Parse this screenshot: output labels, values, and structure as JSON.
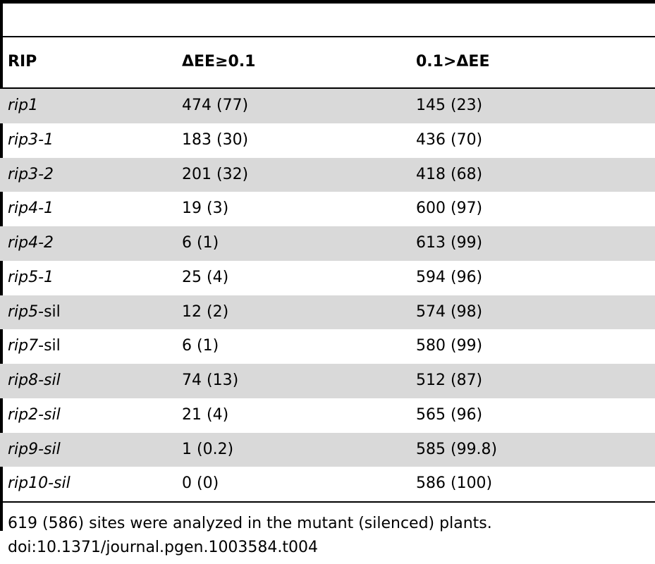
{
  "table": {
    "headers": [
      "RIP",
      "ΔEE≥0.1",
      "0.1>ΔEE"
    ],
    "rows": [
      {
        "rip": "rip1",
        "rip_suffix": "",
        "a": "474 (77)",
        "b": "145 (23)"
      },
      {
        "rip": "rip3-1",
        "rip_suffix": "",
        "a": "183 (30)",
        "b": "436 (70)"
      },
      {
        "rip": "rip3-2",
        "rip_suffix": "",
        "a": "201 (32)",
        "b": "418 (68)"
      },
      {
        "rip": "rip4-1",
        "rip_suffix": "",
        "a": "19 (3)",
        "b": "600 (97)"
      },
      {
        "rip": "rip4-2",
        "rip_suffix": "",
        "a": "6 (1)",
        "b": "613 (99)"
      },
      {
        "rip": "rip5-1",
        "rip_suffix": "",
        "a": "25 (4)",
        "b": "594 (96)"
      },
      {
        "rip": "rip5",
        "rip_suffix": "-sil",
        "a": "12 (2)",
        "b": "574 (98)"
      },
      {
        "rip": "rip7",
        "rip_suffix": "-sil",
        "a": "6 (1)",
        "b": "580 (99)"
      },
      {
        "rip": "rip8-sil",
        "rip_suffix": "",
        "a": "74 (13)",
        "b": "512 (87)"
      },
      {
        "rip": "rip2-sil",
        "rip_suffix": "",
        "a": "21 (4)",
        "b": "565 (96)"
      },
      {
        "rip": "rip9-sil",
        "rip_suffix": "",
        "a": "1 (0.2)",
        "b": "585 (99.8)"
      },
      {
        "rip": "rip10-sil",
        "rip_suffix": "",
        "a": "0 (0)",
        "b": "586 (100)"
      }
    ]
  },
  "footer": {
    "note": "619 (586) sites were analyzed in the mutant (silenced) plants.",
    "doi": "doi:10.1371/journal.pgen.1003584.t004"
  }
}
